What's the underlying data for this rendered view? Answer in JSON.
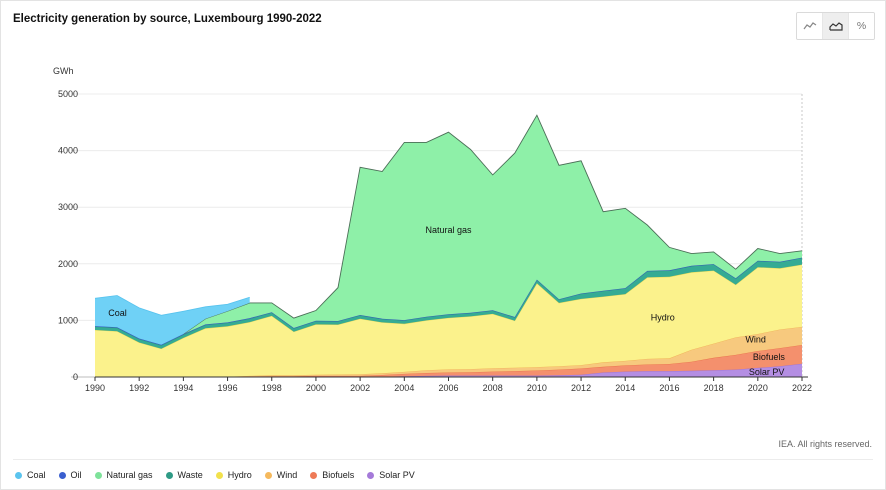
{
  "chart_data": {
    "type": "area",
    "stacked": true,
    "title": "Electricity generation by source, Luxembourg 1990-2022",
    "ylabel": "GWh",
    "xlabel": "",
    "ylim": [
      0,
      5000
    ],
    "yticks": [
      "0",
      "1000",
      "2000",
      "3000",
      "4000",
      "5000"
    ],
    "xticks": [
      "1990",
      "1992",
      "1994",
      "1996",
      "1998",
      "2000",
      "2002",
      "2004",
      "2006",
      "2008",
      "2010",
      "2012",
      "2014",
      "2016",
      "2018",
      "2020",
      "2022"
    ],
    "x": [
      1990,
      1991,
      1992,
      1993,
      1994,
      1995,
      1996,
      1997,
      1998,
      1999,
      2000,
      2001,
      2002,
      2003,
      2004,
      2005,
      2006,
      2007,
      2008,
      2009,
      2010,
      2011,
      2012,
      2013,
      2014,
      2015,
      2016,
      2017,
      2018,
      2019,
      2020,
      2021,
      2022
    ],
    "series": [
      {
        "name": "Solar PV",
        "color": "#b48ee3",
        "stroke": "#9a6fd6",
        "values": [
          0,
          0,
          0,
          0,
          0,
          0,
          0,
          0,
          0,
          0,
          0,
          0,
          0,
          5,
          15,
          20,
          25,
          25,
          25,
          25,
          25,
          30,
          40,
          80,
          95,
          105,
          105,
          110,
          120,
          130,
          160,
          190,
          235
        ]
      },
      {
        "name": "Biofuels",
        "color": "#f4906d",
        "stroke": "#e9714a",
        "values": [
          0,
          0,
          0,
          0,
          0,
          0,
          0,
          10,
          15,
          15,
          20,
          20,
          20,
          30,
          40,
          50,
          55,
          60,
          70,
          80,
          90,
          100,
          110,
          100,
          110,
          115,
          125,
          160,
          220,
          260,
          300,
          320,
          330
        ]
      },
      {
        "name": "Wind",
        "color": "#f7c97e",
        "stroke": "#f0b257",
        "values": [
          0,
          0,
          0,
          0,
          0,
          0,
          5,
          10,
          15,
          15,
          20,
          25,
          30,
          30,
          35,
          50,
          55,
          55,
          60,
          60,
          60,
          60,
          60,
          80,
          80,
          100,
          100,
          210,
          250,
          310,
          300,
          330,
          320
        ]
      },
      {
        "name": "Hydro",
        "color": "#fbf28c",
        "stroke": "#e8d84e",
        "values": [
          830,
          810,
          610,
          500,
          690,
          860,
          890,
          950,
          1050,
          770,
          890,
          880,
          980,
          900,
          850,
          880,
          910,
          930,
          960,
          830,
          1480,
          1120,
          1170,
          1160,
          1180,
          1440,
          1440,
          1370,
          1290,
          930,
          1180,
          1080,
          1100
        ]
      },
      {
        "name": "Waste",
        "color": "#35ab94",
        "stroke": "#2a9582",
        "values": [
          60,
          60,
          60,
          60,
          60,
          60,
          60,
          60,
          60,
          60,
          60,
          60,
          60,
          60,
          60,
          60,
          60,
          60,
          60,
          60,
          60,
          60,
          90,
          100,
          100,
          110,
          110,
          110,
          110,
          110,
          110,
          110,
          120
        ]
      },
      {
        "name": "Oil",
        "color": "#4a6fd6",
        "stroke": "#3557c0",
        "values": [
          10,
          10,
          10,
          10,
          10,
          10,
          10,
          10,
          5,
          5,
          5,
          5,
          5,
          5,
          5,
          5,
          5,
          5,
          5,
          5,
          5,
          5,
          5,
          5,
          5,
          5,
          5,
          5,
          5,
          5,
          5,
          5,
          5
        ]
      },
      {
        "name": "Natural gas",
        "color": "#8ef0a8",
        "stroke": "#4b6e57",
        "values": [
          0,
          0,
          0,
          0,
          0,
          100,
          200,
          270,
          165,
          175,
          180,
          590,
          2610,
          2600,
          3140,
          3080,
          3215,
          2885,
          2390,
          2895,
          2905,
          2365,
          2345,
          1395,
          1410,
          810,
          405,
          215,
          215,
          160,
          215,
          145,
          120
        ]
      },
      {
        "name": "Coal",
        "color": "#6fd1f6",
        "stroke": "#58c3ee",
        "values": [
          490,
          560,
          540,
          520,
          400,
          210,
          120,
          100,
          0,
          0,
          0,
          0,
          0,
          0,
          0,
          0,
          0,
          0,
          0,
          0,
          0,
          0,
          0,
          0,
          0,
          0,
          0,
          0,
          0,
          0,
          0,
          0,
          0
        ]
      }
    ],
    "area_labels": [
      {
        "text": "Natural gas",
        "x": 2006,
        "y": 2600
      },
      {
        "text": "Coal",
        "x": 1990.6,
        "y": 1130
      },
      {
        "text": "Hydro",
        "x": 2015.7,
        "y": 1050
      },
      {
        "text": "Wind",
        "x": 2019.9,
        "y": 660
      },
      {
        "text": "Biofuels",
        "x": 2020.5,
        "y": 350
      },
      {
        "text": "Solar PV",
        "x": 2020.4,
        "y": 90
      }
    ],
    "legend_position": "bottom-left",
    "grid": true
  },
  "toolbar": {
    "line_icon": "line-chart-icon",
    "area_icon": "area-chart-icon",
    "percent_label": "%"
  },
  "legend": {
    "items": [
      {
        "label": "Coal",
        "color": "#5bc4ee"
      },
      {
        "label": "Oil",
        "color": "#3a5fcf"
      },
      {
        "label": "Natural gas",
        "color": "#7ee29a"
      },
      {
        "label": "Waste",
        "color": "#2f9b86"
      },
      {
        "label": "Hydro",
        "color": "#f2e14c"
      },
      {
        "label": "Wind",
        "color": "#f5b95d"
      },
      {
        "label": "Biofuels",
        "color": "#ee7a57"
      },
      {
        "label": "Solar PV",
        "color": "#a57ad9"
      }
    ]
  },
  "credit": "IEA. All rights reserved."
}
